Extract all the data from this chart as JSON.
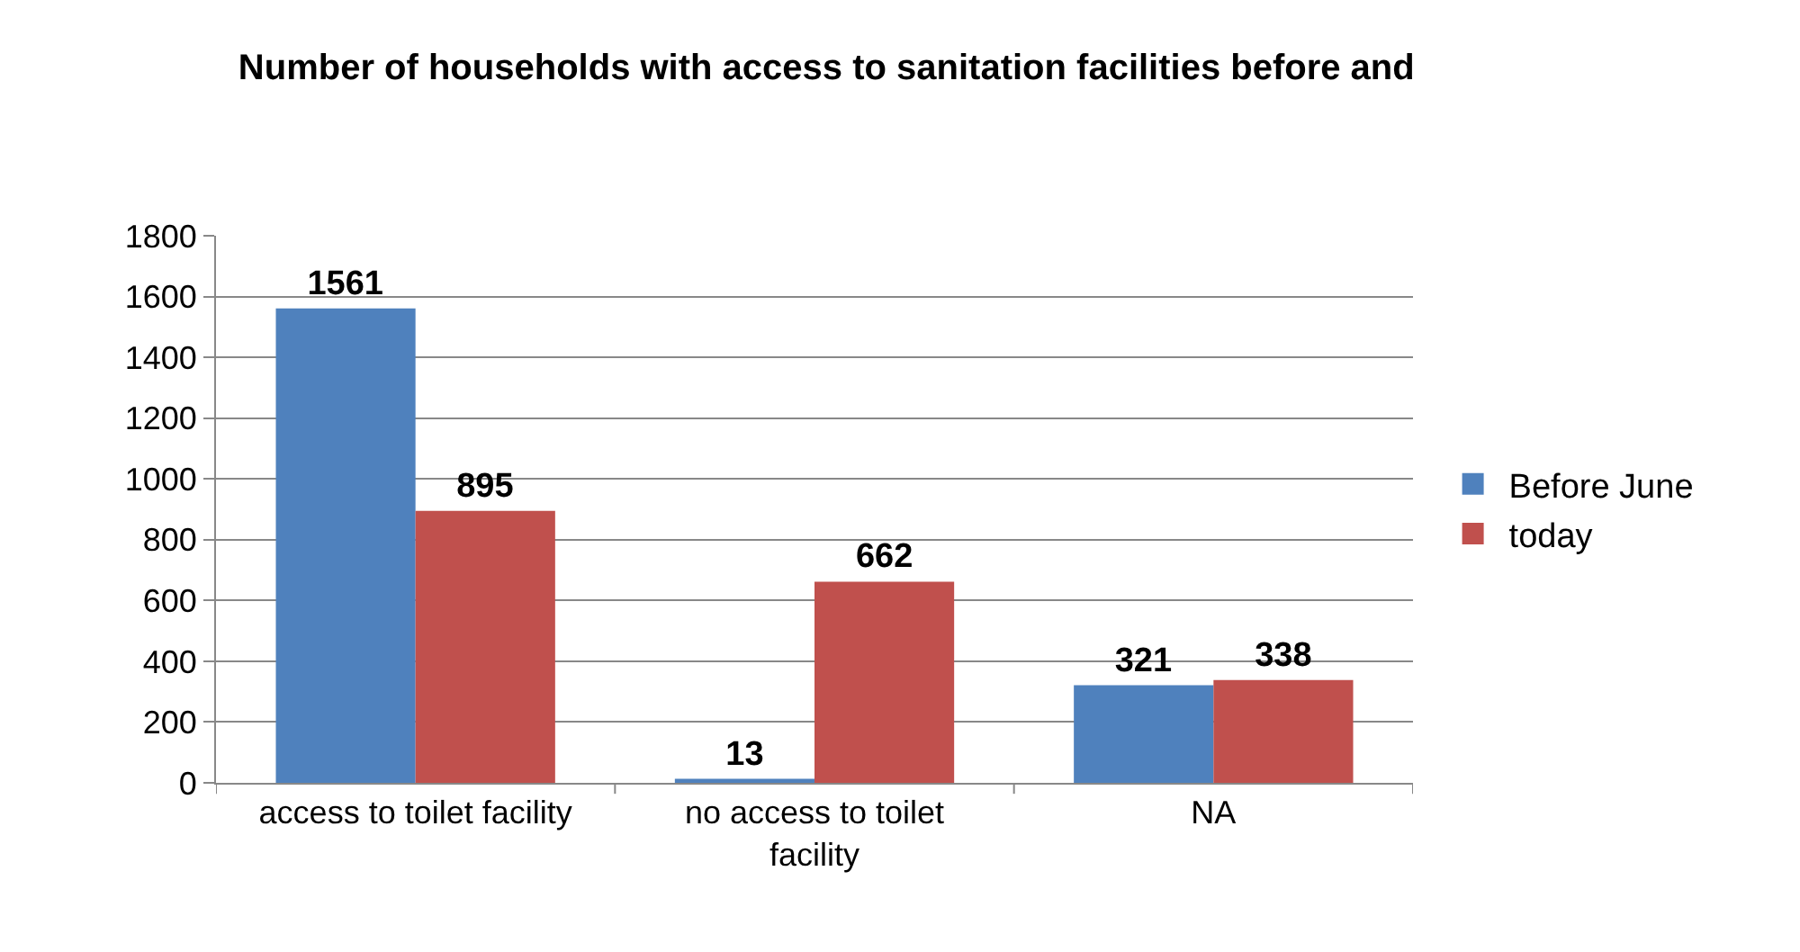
{
  "chart_data": {
    "type": "bar",
    "title": "Number of households with access to sanitation facilities before and",
    "categories": [
      "access to toilet facility",
      "no access to toilet facility",
      "NA"
    ],
    "series": [
      {
        "name": "Before June",
        "color": "#4f81bd",
        "values": [
          1561,
          13,
          321
        ]
      },
      {
        "name": "today",
        "color": "#c0504d",
        "values": [
          895,
          662,
          338
        ]
      }
    ],
    "ylim": [
      0,
      1800
    ],
    "yticks": [
      0,
      200,
      400,
      600,
      800,
      1000,
      1200,
      1400,
      1600,
      1800
    ],
    "grid": "y",
    "legend": "right",
    "data_labels": true
  }
}
